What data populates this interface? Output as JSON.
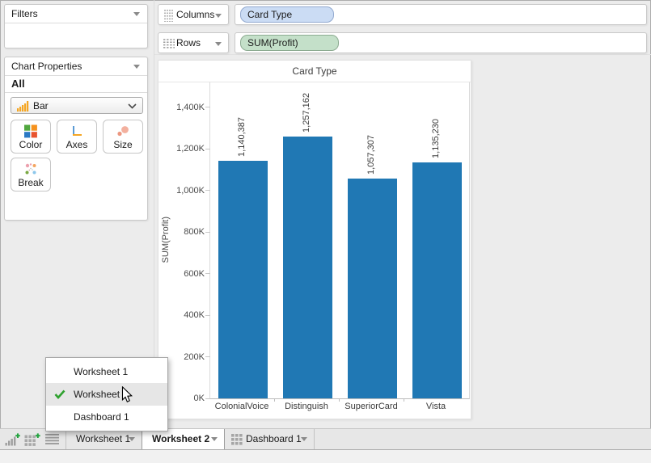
{
  "left_panel": {
    "filters_title": "Filters",
    "chart_properties_title": "Chart Properties",
    "scope_label": "All",
    "chart_type_label": "Bar",
    "buttons": [
      {
        "label": "Color"
      },
      {
        "label": "Axes"
      },
      {
        "label": "Size"
      },
      {
        "label": "Break"
      }
    ]
  },
  "shelves": {
    "columns_label": "Columns",
    "rows_label": "Rows",
    "columns_pill": "Card Type",
    "rows_pill": "SUM(Profit)"
  },
  "chart_data": {
    "type": "bar",
    "title": "Card Type",
    "categories": [
      "ColonialVoice",
      "Distinguish",
      "SuperiorCard",
      "Vista"
    ],
    "values": [
      1140387,
      1257162,
      1057307,
      1135230
    ],
    "value_labels": [
      "1,140,387",
      "1,257,162",
      "1,057,307",
      "1,135,230"
    ],
    "xlabel": "",
    "ylabel": "SUM(Profit)",
    "yticks": [
      "0K",
      "200K",
      "400K",
      "600K",
      "800K",
      "1,000K",
      "1,200K",
      "1,400K"
    ],
    "ytick_values": [
      0,
      200000,
      400000,
      600000,
      800000,
      1000000,
      1200000,
      1400000
    ],
    "ylim": [
      0,
      1400000
    ],
    "bar_color": "#2078b4",
    "grid": "off",
    "legend": "none"
  },
  "sheet_menu": {
    "items": [
      {
        "label": "Worksheet 1",
        "checked": false,
        "highlighted": false
      },
      {
        "label": "Worksheet 2",
        "checked": true,
        "highlighted": true
      },
      {
        "label": "Dashboard 1",
        "checked": false,
        "highlighted": false
      }
    ]
  },
  "tab_bar": {
    "tabs": [
      {
        "label": "Worksheet 1",
        "active": false,
        "icon": "none"
      },
      {
        "label": "Worksheet 2",
        "active": true,
        "icon": "none"
      },
      {
        "label": "Dashboard 1",
        "active": false,
        "icon": "dashboard-grid-icon"
      }
    ]
  },
  "colors": {
    "bar": "#2078b4",
    "columns_pill_fill": "#cbdcf4",
    "columns_pill_border": "#92a9cf",
    "rows_pill_fill": "#c4e0c9",
    "rows_pill_border": "#8cab91",
    "check_green": "#2ea12e",
    "accent_orange": "#f5a623"
  }
}
